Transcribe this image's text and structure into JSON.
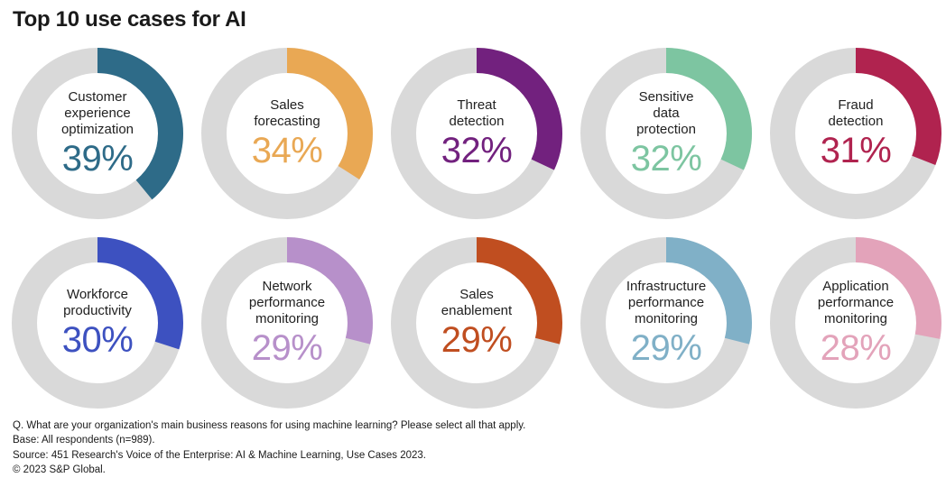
{
  "title": "Top 10 use cases for AI",
  "chart_data": {
    "type": "pie",
    "subtype": "donut-grid",
    "unit": "%",
    "track_color": "#d9d9d9",
    "ring_thickness_px": 28,
    "start_angle_deg": 0,
    "direction": "clockwise",
    "items": [
      {
        "label": "Customer experience optimization",
        "lines": [
          "Customer",
          "experience",
          "optimization"
        ],
        "value": 39,
        "color": "#2e6b88"
      },
      {
        "label": "Sales forecasting",
        "lines": [
          "Sales",
          "forecasting"
        ],
        "value": 34,
        "color": "#e9a854"
      },
      {
        "label": "Threat detection",
        "lines": [
          "Threat",
          "detection"
        ],
        "value": 32,
        "color": "#72217e"
      },
      {
        "label": "Sensitive data protection",
        "lines": [
          "Sensitive",
          "data",
          "protection"
        ],
        "value": 32,
        "color": "#7dc5a1"
      },
      {
        "label": "Fraud detection",
        "lines": [
          "Fraud",
          "detection"
        ],
        "value": 31,
        "color": "#b0234f"
      },
      {
        "label": "Workforce productivity",
        "lines": [
          "Workforce",
          "productivity"
        ],
        "value": 30,
        "color": "#3d51c0"
      },
      {
        "label": "Network performance monitoring",
        "lines": [
          "Network",
          "performance",
          "monitoring"
        ],
        "value": 29,
        "color": "#b790ca"
      },
      {
        "label": "Sales enablement",
        "lines": [
          "Sales",
          "enablement"
        ],
        "value": 29,
        "color": "#c04e20"
      },
      {
        "label": "Infrastructure performance monitoring",
        "lines": [
          "Infrastructure",
          "performance",
          "monitoring"
        ],
        "value": 29,
        "color": "#80b0c7"
      },
      {
        "label": "Application performance monitoring",
        "lines": [
          "Application",
          "performance",
          "monitoring"
        ],
        "value": 28,
        "color": "#e3a3ba"
      }
    ]
  },
  "footer": {
    "line1": "Q. What are your organization's main business reasons for using machine learning? Please select all that apply.",
    "line2": "Base: All respondents (n=989).",
    "line3": "Source: 451 Research's Voice of the Enterprise: AI & Machine Learning, Use Cases 2023.",
    "line4": "© 2023 S&P Global."
  }
}
